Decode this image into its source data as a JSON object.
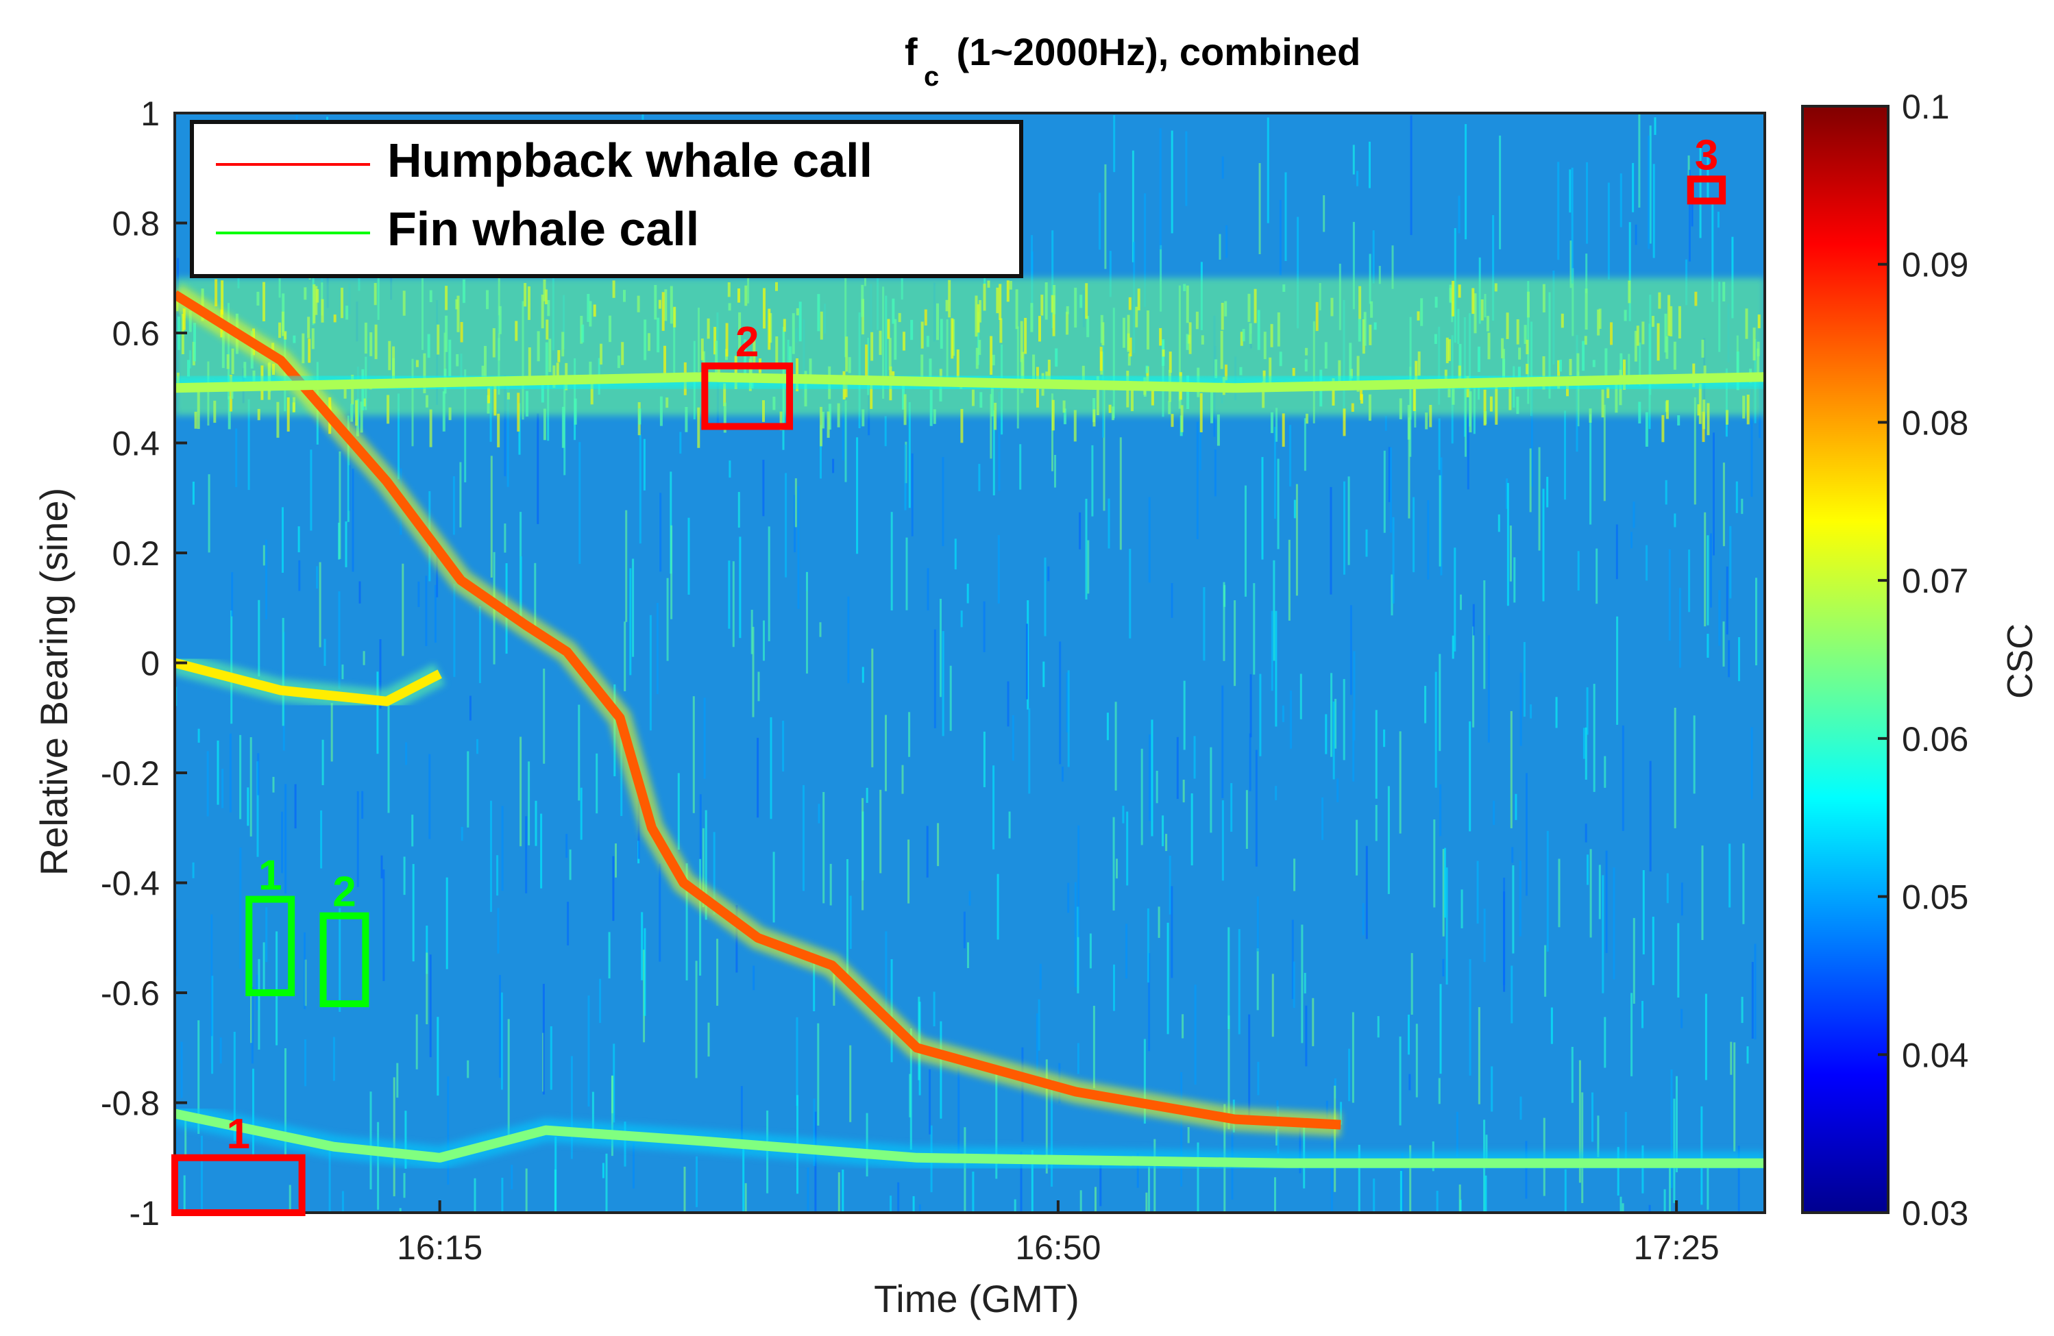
{
  "chart_data": {
    "type": "heatmap",
    "title_main": "f",
    "title_sub": "c",
    "title_rest": " (1~2000Hz), combined",
    "xlabel": "Time (GMT)",
    "ylabel": "Relative Bearing (sine)",
    "x_ticks": [
      "16:15",
      "16:50",
      "17:25"
    ],
    "y_ticks": [
      "1",
      "0.8",
      "0.6",
      "0.4",
      "0.2",
      "0",
      "-0.2",
      "-0.4",
      "-0.6",
      "-0.8",
      "-1"
    ],
    "ylim": [
      -1,
      1
    ],
    "colorbar": {
      "label": "CSC",
      "ticks": [
        "0.1",
        "0.09",
        "0.08",
        "0.07",
        "0.06",
        "0.05",
        "0.04",
        "0.03"
      ],
      "range": [
        0.03,
        0.1
      ],
      "colormap": "jet"
    },
    "legend": {
      "placement": "top-left",
      "entries": [
        {
          "label": "Humpback whale call",
          "color": "#ff0000"
        },
        {
          "label": "Fin whale call",
          "color": "#00ff00"
        }
      ]
    },
    "annotations": [
      {
        "label": "1",
        "kind": "humpback",
        "color": "#ff0000",
        "t_min": 16.0,
        "t_max": 16.12,
        "bearing_min": -1.0,
        "bearing_max": -0.9
      },
      {
        "label": "2",
        "kind": "humpback",
        "color": "#ff0000",
        "t_min": 16.5,
        "t_max": 16.58,
        "bearing_min": 0.43,
        "bearing_max": 0.54
      },
      {
        "label": "3",
        "kind": "humpback",
        "color": "#ff0000",
        "t_min": 17.43,
        "t_max": 17.46,
        "bearing_min": 0.84,
        "bearing_max": 0.88
      },
      {
        "label": "1",
        "kind": "fin",
        "color": "#00ff00",
        "t_min": 16.07,
        "t_max": 16.11,
        "bearing_min": -0.6,
        "bearing_max": -0.43
      },
      {
        "label": "2",
        "kind": "fin",
        "color": "#00ff00",
        "t_min": 16.14,
        "t_max": 16.18,
        "bearing_min": -0.62,
        "bearing_max": -0.46
      }
    ],
    "tracks": [
      {
        "points": [
          [
            16.0,
            0.67
          ],
          [
            16.1,
            0.55
          ],
          [
            16.2,
            0.33
          ],
          [
            16.27,
            0.15
          ],
          [
            16.33,
            0.07
          ],
          [
            16.37,
            0.02
          ],
          [
            16.42,
            -0.1
          ],
          [
            16.45,
            -0.3
          ],
          [
            16.48,
            -0.4
          ],
          [
            16.55,
            -0.5
          ],
          [
            16.62,
            -0.55
          ],
          [
            16.7,
            -0.7
          ],
          [
            16.85,
            -0.78
          ],
          [
            17.0,
            -0.83
          ],
          [
            17.1,
            -0.84
          ]
        ],
        "intensity": 0.085
      },
      {
        "points": [
          [
            16.0,
            0.0
          ],
          [
            16.1,
            -0.05
          ],
          [
            16.2,
            -0.07
          ],
          [
            16.25,
            -0.02
          ]
        ],
        "intensity": 0.075
      },
      {
        "points": [
          [
            16.0,
            -0.82
          ],
          [
            16.15,
            -0.88
          ],
          [
            16.25,
            -0.9
          ],
          [
            16.35,
            -0.85
          ],
          [
            16.5,
            -0.87
          ],
          [
            16.7,
            -0.9
          ],
          [
            17.05,
            -0.91
          ],
          [
            17.5,
            -0.91
          ]
        ],
        "intensity": 0.065
      },
      {
        "points": [
          [
            16.0,
            0.5
          ],
          [
            16.5,
            0.52
          ],
          [
            17.0,
            0.5
          ],
          [
            17.5,
            0.52
          ]
        ],
        "intensity": 0.068
      }
    ],
    "band": {
      "bearing_min": 0.45,
      "bearing_max": 0.7,
      "intensity": 0.064
    }
  }
}
